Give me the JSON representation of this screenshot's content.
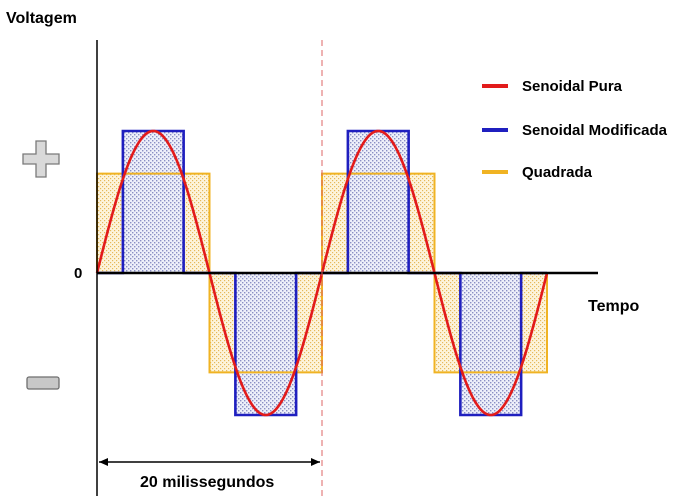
{
  "chart_data": {
    "type": "line",
    "ylabel": "Voltagem",
    "xlabel": "Tempo",
    "y_tick_labels": [
      "0"
    ],
    "annotations": {
      "period_label": "20 milissegundos",
      "plus_sign": "plus-icon",
      "minus_sign": "minus-icon"
    },
    "x_range_ms": [
      0,
      40
    ],
    "y_range": [
      -1.2,
      1.2
    ],
    "series": [
      {
        "name": "Senoidal Pura",
        "color": "#e21b1b",
        "shape": "sine",
        "period_ms": 20,
        "amplitude": 1.0
      },
      {
        "name": "Senoidal Modificada",
        "color": "#1f1fbf",
        "shape": "modified-sine",
        "period_ms": 20,
        "amplitude": 1.0,
        "points": [
          {
            "t": 0,
            "v": 0
          },
          {
            "t": 2.3,
            "v": 0
          },
          {
            "t": 2.3,
            "v": 1.0
          },
          {
            "t": 7.7,
            "v": 1.0
          },
          {
            "t": 7.7,
            "v": 0
          },
          {
            "t": 12.3,
            "v": 0
          },
          {
            "t": 12.3,
            "v": -1.0
          },
          {
            "t": 17.7,
            "v": -1.0
          },
          {
            "t": 17.7,
            "v": 0
          },
          {
            "t": 22.3,
            "v": 0
          },
          {
            "t": 22.3,
            "v": 1.0
          },
          {
            "t": 27.7,
            "v": 1.0
          },
          {
            "t": 27.7,
            "v": 0
          },
          {
            "t": 32.3,
            "v": 0
          },
          {
            "t": 32.3,
            "v": -1.0
          },
          {
            "t": 37.7,
            "v": -1.0
          },
          {
            "t": 37.7,
            "v": 0
          },
          {
            "t": 40,
            "v": 0
          }
        ]
      },
      {
        "name": "Quadrada",
        "color": "#f0b323",
        "shape": "square",
        "period_ms": 20,
        "amplitude": 0.7,
        "points": [
          {
            "t": 0,
            "v": 0
          },
          {
            "t": 0,
            "v": 0.7
          },
          {
            "t": 10,
            "v": 0.7
          },
          {
            "t": 10,
            "v": -0.7
          },
          {
            "t": 20,
            "v": -0.7
          },
          {
            "t": 20,
            "v": 0.7
          },
          {
            "t": 30,
            "v": 0.7
          },
          {
            "t": 30,
            "v": -0.7
          },
          {
            "t": 40,
            "v": -0.7
          },
          {
            "t": 40,
            "v": 0
          }
        ]
      }
    ],
    "legend": [
      {
        "label": "Senoidal Pura",
        "color": "#e21b1b"
      },
      {
        "label": "Senoidal Modificada",
        "color": "#1f1fbf"
      },
      {
        "label": "Quadrada",
        "color": "#f0b323"
      }
    ],
    "legend_position": "top-right",
    "grid": false
  }
}
